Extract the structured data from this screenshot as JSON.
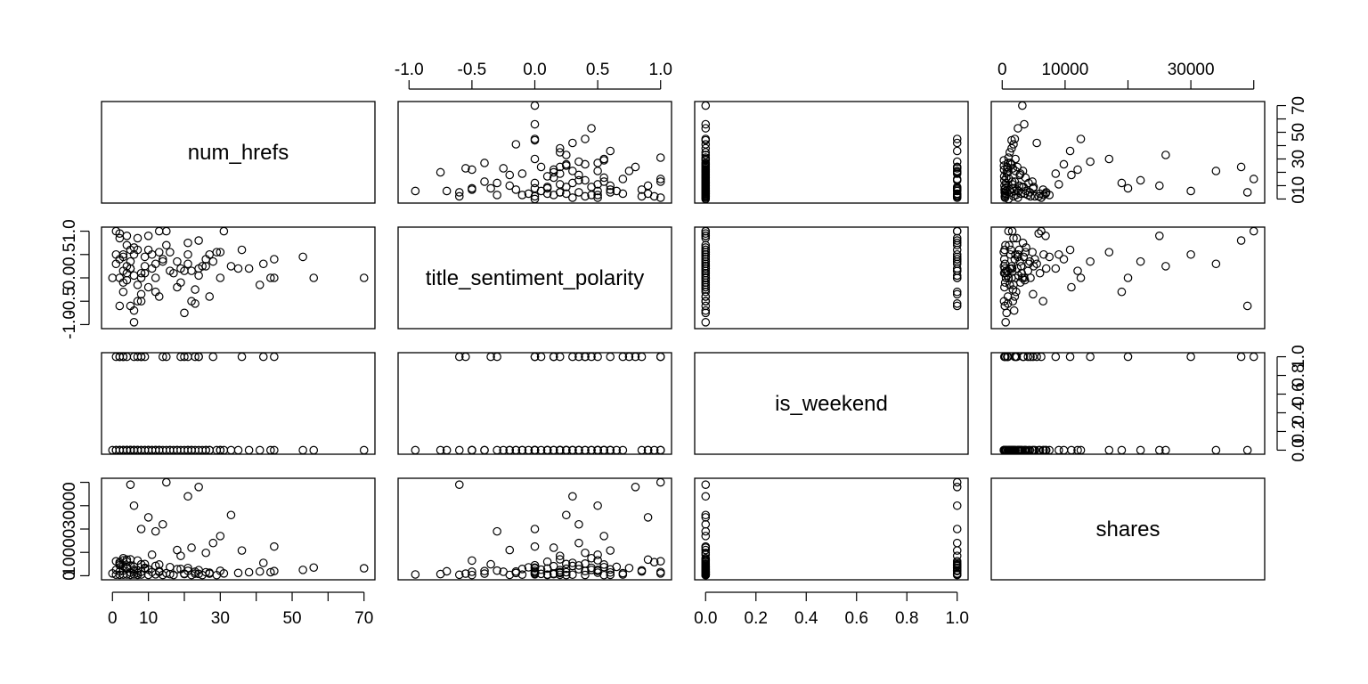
{
  "chart_data": {
    "type": "scatter",
    "kind": "pairs-matrix",
    "title": "",
    "variables": [
      {
        "name": "num_hrefs",
        "range": [
          0,
          70
        ],
        "ticks": [
          0,
          10,
          20,
          30,
          40,
          50,
          60,
          70
        ],
        "labels": [
          "0",
          "10",
          "30",
          "50",
          "70"
        ]
      },
      {
        "name": "title_sentiment_polarity",
        "range": [
          -1.0,
          1.0
        ],
        "ticks": [
          -1.0,
          -0.5,
          0.0,
          0.5,
          1.0
        ],
        "labels": [
          "-1.0",
          "-0.5",
          "0.0",
          "0.5",
          "1.0"
        ]
      },
      {
        "name": "is_weekend",
        "range": [
          0,
          1
        ],
        "ticks": [
          0.0,
          0.2,
          0.4,
          0.6,
          0.8,
          1.0
        ],
        "labels": [
          "0.0",
          "0.2",
          "0.4",
          "0.6",
          "0.8",
          "1.0"
        ]
      },
      {
        "name": "shares",
        "range": [
          0,
          40000
        ],
        "ticks": [
          0,
          10000,
          20000,
          30000,
          40000
        ],
        "labels": [
          "0",
          "10000",
          "30000"
        ]
      }
    ],
    "points": [
      [
        15,
        1,
        1,
        40000
      ],
      [
        14,
        0.35,
        0,
        22000
      ],
      [
        24,
        0.8,
        1,
        38000
      ],
      [
        21,
        0.3,
        0,
        34000
      ],
      [
        5,
        -0.6,
        0,
        39000
      ],
      [
        6,
        0.5,
        1,
        30000
      ],
      [
        10,
        0.9,
        0,
        25000
      ],
      [
        8,
        0,
        1,
        20000
      ],
      [
        33,
        0.25,
        0,
        26000
      ],
      [
        12,
        -0.3,
        0,
        19000
      ],
      [
        30,
        0.55,
        0,
        17000
      ],
      [
        28,
        0.35,
        1,
        14000
      ],
      [
        22,
        0.15,
        0,
        12000
      ],
      [
        45,
        0,
        0,
        12500
      ],
      [
        18,
        -0.2,
        0,
        11000
      ],
      [
        36,
        0.6,
        1,
        10800
      ],
      [
        26,
        0.4,
        0,
        9800
      ],
      [
        11,
        0.5,
        0,
        9000
      ],
      [
        19,
        0.2,
        1,
        8500
      ],
      [
        3,
        0.45,
        0,
        7500
      ],
      [
        5,
        0.2,
        0,
        7000
      ],
      [
        7,
        -0.5,
        0,
        6500
      ],
      [
        4,
        0.1,
        0,
        6000
      ],
      [
        42,
        0.3,
        1,
        5500
      ],
      [
        9,
        0.25,
        0,
        5000
      ],
      [
        13,
        0.55,
        0,
        4800
      ],
      [
        2,
        0,
        1,
        4500
      ],
      [
        56,
        0,
        0,
        3500
      ],
      [
        70,
        0,
        0,
        3200
      ],
      [
        53,
        0.45,
        0,
        2500
      ],
      [
        45,
        0.4,
        1,
        2000
      ],
      [
        41,
        -0.15,
        0,
        1800
      ],
      [
        44,
        0,
        0,
        1500
      ],
      [
        35,
        0.2,
        0,
        1200
      ],
      [
        31,
        1,
        0,
        1000
      ],
      [
        27,
        -0.4,
        0,
        900
      ],
      [
        24,
        0.05,
        1,
        800
      ],
      [
        20,
        -0.75,
        0,
        700
      ],
      [
        16,
        0.15,
        0,
        650
      ],
      [
        12,
        0,
        0,
        600
      ],
      [
        6,
        -0.95,
        0,
        550
      ],
      [
        4,
        0.7,
        1,
        520
      ],
      [
        8,
        0.1,
        0,
        500
      ],
      [
        3,
        -0.1,
        0,
        480
      ],
      [
        1,
        0.3,
        0,
        450
      ],
      [
        2,
        -0.6,
        1,
        420
      ],
      [
        5,
        0.2,
        0,
        400
      ],
      [
        7,
        0.6,
        0,
        380
      ],
      [
        10,
        -0.2,
        0,
        360
      ],
      [
        14,
        0.4,
        1,
        340
      ],
      [
        17,
        0.1,
        0,
        320
      ],
      [
        22,
        -0.5,
        0,
        300
      ],
      [
        25,
        0.25,
        0,
        280
      ],
      [
        29,
        0.55,
        0,
        260
      ],
      [
        0,
        0,
        0,
        1000
      ],
      [
        1,
        0.5,
        0,
        2500
      ],
      [
        2,
        0.85,
        0,
        1800
      ],
      [
        3,
        -0.3,
        1,
        2200
      ],
      [
        4,
        0.25,
        0,
        3000
      ],
      [
        5,
        0.6,
        0,
        1400
      ],
      [
        6,
        0.05,
        0,
        2600
      ],
      [
        7,
        -0.15,
        0,
        1200
      ],
      [
        9,
        0.45,
        1,
        3400
      ],
      [
        11,
        0.2,
        0,
        1600
      ],
      [
        13,
        -0.4,
        0,
        2000
      ],
      [
        15,
        0.7,
        0,
        1100
      ],
      [
        18,
        0.35,
        0,
        2800
      ],
      [
        20,
        0.15,
        1,
        900
      ],
      [
        23,
        -0.25,
        0,
        1700
      ],
      [
        27,
        0.5,
        0,
        1300
      ],
      [
        30,
        0,
        0,
        2100
      ],
      [
        38,
        0.2,
        0,
        1500
      ],
      [
        2,
        0.4,
        0,
        5200
      ],
      [
        3,
        0.15,
        1,
        4100
      ],
      [
        4,
        -0.05,
        0,
        3600
      ],
      [
        5,
        0.35,
        0,
        4400
      ],
      [
        6,
        0.65,
        0,
        3800
      ],
      [
        8,
        -0.35,
        1,
        4900
      ],
      [
        9,
        0.1,
        0,
        3100
      ],
      [
        12,
        0.3,
        0,
        4200
      ],
      [
        16,
        0.55,
        0,
        3700
      ],
      [
        19,
        -0.1,
        0,
        2900
      ],
      [
        21,
        0.75,
        1,
        3300
      ],
      [
        24,
        0.2,
        0,
        2400
      ],
      [
        1,
        1,
        1,
        6200
      ],
      [
        2,
        0.95,
        0,
        5800
      ],
      [
        3,
        0.5,
        0,
        6600
      ],
      [
        4,
        0.9,
        0,
        6900
      ],
      [
        6,
        -0.7,
        0,
        1900
      ],
      [
        7,
        0.85,
        1,
        2300
      ],
      [
        8,
        -0.5,
        0,
        1700
      ],
      [
        10,
        0.6,
        0,
        2700
      ],
      [
        13,
        1,
        0,
        1600
      ],
      [
        21,
        0.5,
        0,
        2100
      ],
      [
        23,
        -0.55,
        1,
        900
      ],
      [
        26,
        0.25,
        0,
        1500
      ]
    ]
  }
}
